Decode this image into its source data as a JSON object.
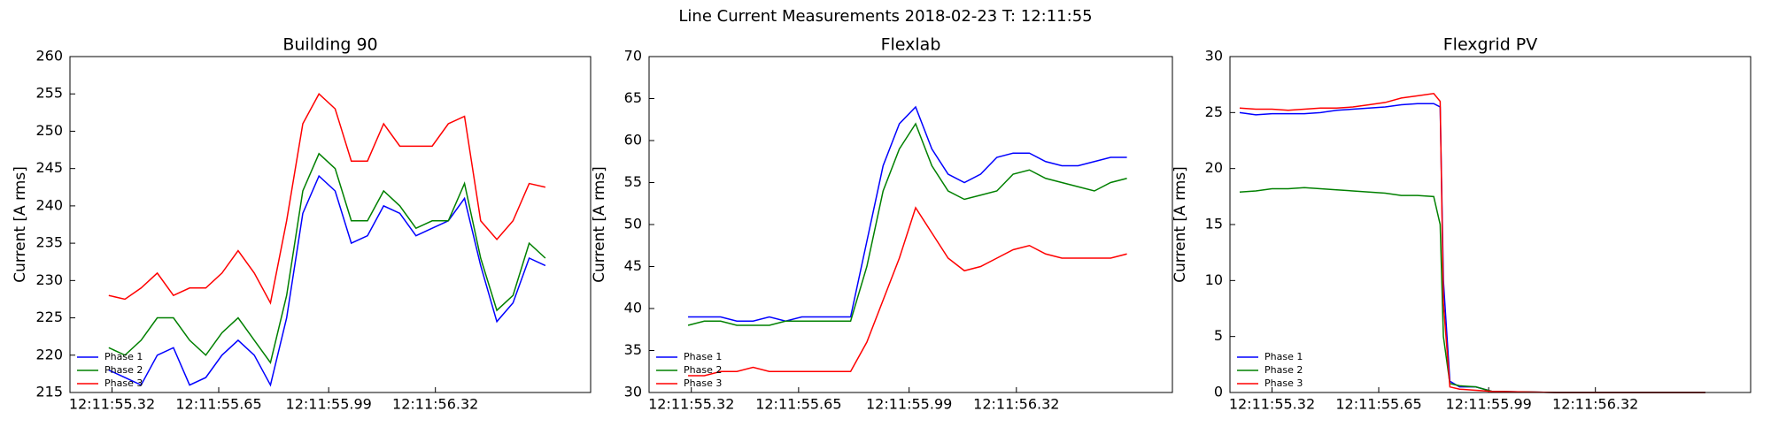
{
  "title": "Line Current Measurements 2018-02-23 T: 12:11:55",
  "chart_data": [
    {
      "type": "line",
      "title": "Building 90",
      "ylabel": "Current [A rms]",
      "xlim": [
        55.19,
        56.8
      ],
      "ylim": [
        215,
        260
      ],
      "xticks": [
        {
          "value": 55.32,
          "label": "12:11:55.32"
        },
        {
          "value": 55.65,
          "label": "12:11:55.65"
        },
        {
          "value": 55.99,
          "label": "12:11:55.99"
        },
        {
          "value": 56.32,
          "label": "12:11:56.32"
        }
      ],
      "yticks": [
        215,
        220,
        225,
        230,
        235,
        240,
        245,
        250,
        255,
        260
      ],
      "legend": "lower left",
      "x": [
        55.31,
        55.36,
        55.41,
        55.46,
        55.51,
        55.56,
        55.61,
        55.66,
        55.71,
        55.76,
        55.81,
        55.86,
        55.91,
        55.96,
        56.01,
        56.06,
        56.11,
        56.16,
        56.21,
        56.26,
        56.31,
        56.36,
        56.41,
        56.46,
        56.51,
        56.56,
        56.61,
        56.66
      ],
      "series": [
        {
          "name": "Phase 1",
          "color": "#0000ff",
          "values": [
            218,
            217,
            216,
            220,
            221,
            216,
            217,
            220,
            222,
            220,
            216,
            225,
            239,
            244,
            242,
            235,
            236,
            240,
            239,
            236,
            237,
            238,
            241,
            232,
            224.5,
            227,
            233,
            232
          ]
        },
        {
          "name": "Phase 2",
          "color": "#008000",
          "values": [
            221,
            220,
            222,
            225,
            225,
            222,
            220,
            223,
            225,
            222,
            219,
            228,
            242,
            247,
            245,
            238,
            238,
            242,
            240,
            237,
            238,
            238,
            243,
            233,
            226,
            228,
            235,
            233
          ]
        },
        {
          "name": "Phase 3",
          "color": "#ff0000",
          "values": [
            228,
            227.5,
            229,
            231,
            228,
            229,
            229,
            231,
            234,
            231,
            227,
            238,
            251,
            255,
            253,
            246,
            246,
            251,
            248,
            248,
            248,
            251,
            252,
            238,
            235.5,
            238,
            243,
            242.5
          ]
        }
      ]
    },
    {
      "type": "line",
      "title": "Flexlab",
      "ylabel": "Current [A rms]",
      "xlim": [
        55.19,
        56.8
      ],
      "ylim": [
        30,
        70
      ],
      "xticks": [
        {
          "value": 55.32,
          "label": "12:11:55.32"
        },
        {
          "value": 55.65,
          "label": "12:11:55.65"
        },
        {
          "value": 55.99,
          "label": "12:11:55.99"
        },
        {
          "value": 56.32,
          "label": "12:11:56.32"
        }
      ],
      "yticks": [
        30,
        35,
        40,
        45,
        50,
        55,
        60,
        65,
        70
      ],
      "legend": "lower left",
      "x": [
        55.31,
        55.36,
        55.41,
        55.46,
        55.51,
        55.56,
        55.61,
        55.66,
        55.71,
        55.76,
        55.81,
        55.86,
        55.91,
        55.96,
        56.01,
        56.06,
        56.11,
        56.16,
        56.21,
        56.26,
        56.31,
        56.36,
        56.41,
        56.46,
        56.51,
        56.56,
        56.61,
        56.66
      ],
      "series": [
        {
          "name": "Phase 1",
          "color": "#0000ff",
          "values": [
            39,
            39,
            39,
            38.5,
            38.5,
            39,
            38.5,
            39,
            39,
            39,
            39,
            48,
            57,
            62,
            64,
            59,
            56,
            55,
            56,
            58,
            58.5,
            58.5,
            57.5,
            57,
            57,
            57.5,
            58,
            58
          ]
        },
        {
          "name": "Phase 2",
          "color": "#008000",
          "values": [
            38,
            38.5,
            38.5,
            38,
            38,
            38,
            38.5,
            38.5,
            38.5,
            38.5,
            38.5,
            45,
            54,
            59,
            62,
            57,
            54,
            53,
            53.5,
            54,
            56,
            56.5,
            55.5,
            55,
            54.5,
            54,
            55,
            55.5
          ]
        },
        {
          "name": "Phase 3",
          "color": "#ff0000",
          "values": [
            32,
            32,
            32.5,
            32.5,
            33,
            32.5,
            32.5,
            32.5,
            32.5,
            32.5,
            32.5,
            36,
            41,
            46,
            52,
            49,
            46,
            44.5,
            45,
            46,
            47,
            47.5,
            46.5,
            46,
            46,
            46,
            46,
            46.5
          ]
        }
      ]
    },
    {
      "type": "line",
      "title": "Flexgrid PV",
      "ylabel": "Current [A rms]",
      "xlim": [
        55.19,
        56.8
      ],
      "ylim": [
        0,
        30
      ],
      "xticks": [
        {
          "value": 55.32,
          "label": "12:11:55.32"
        },
        {
          "value": 55.65,
          "label": "12:11:55.65"
        },
        {
          "value": 55.99,
          "label": "12:11:55.99"
        },
        {
          "value": 56.32,
          "label": "12:11:56.32"
        }
      ],
      "yticks": [
        0,
        5,
        10,
        15,
        20,
        25,
        30
      ],
      "legend": "lower left",
      "x": [
        55.22,
        55.27,
        55.32,
        55.37,
        55.42,
        55.47,
        55.52,
        55.57,
        55.62,
        55.67,
        55.72,
        55.77,
        55.82,
        55.84,
        55.85,
        55.87,
        55.9,
        55.95,
        56.0,
        56.1,
        56.2,
        56.3,
        56.4,
        56.5,
        56.6,
        56.66
      ],
      "series": [
        {
          "name": "Phase 1",
          "color": "#0000ff",
          "values": [
            25,
            24.8,
            24.9,
            24.9,
            24.9,
            25,
            25.2,
            25.3,
            25.4,
            25.5,
            25.7,
            25.8,
            25.8,
            25.5,
            10,
            1,
            0.5,
            0.5,
            0.1,
            0.05,
            0,
            0,
            0,
            0,
            0,
            0
          ]
        },
        {
          "name": "Phase 2",
          "color": "#008000",
          "values": [
            17.9,
            18,
            18.2,
            18.2,
            18.3,
            18.2,
            18.1,
            18,
            17.9,
            17.8,
            17.6,
            17.6,
            17.5,
            15,
            5,
            0.8,
            0.6,
            0.5,
            0.1,
            0.05,
            0,
            0,
            0,
            0,
            0,
            0
          ]
        },
        {
          "name": "Phase 3",
          "color": "#ff0000",
          "values": [
            25.4,
            25.3,
            25.3,
            25.2,
            25.3,
            25.4,
            25.4,
            25.5,
            25.7,
            25.9,
            26.3,
            26.5,
            26.7,
            26,
            8,
            0.5,
            0.3,
            0.2,
            0.1,
            0.05,
            0,
            0,
            0,
            0,
            0,
            0
          ]
        }
      ]
    }
  ]
}
